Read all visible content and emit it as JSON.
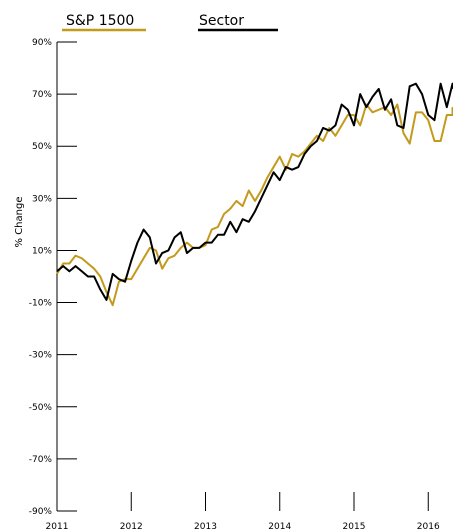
{
  "chart_data": {
    "type": "line",
    "title": "",
    "xlabel": "",
    "ylabel": "% Change",
    "ylim": [
      -90,
      90
    ],
    "yticks": [
      "90%",
      "70%",
      "50%",
      "30%",
      "10%",
      "-10%",
      "-30%",
      "-50%",
      "-70%",
      "-90%"
    ],
    "xtick_labels": [
      "2011",
      "2012",
      "2013",
      "2014",
      "2015",
      "2016"
    ],
    "x_start": "2011-01",
    "x_end": "2016-05",
    "grid": false,
    "legend_position": "top-left",
    "series": [
      {
        "name": "S&P 1500",
        "color": "#C49A1C",
        "values": [
          1,
          5,
          5,
          8,
          7,
          5,
          3,
          0,
          -6,
          -11,
          -2,
          -1,
          -1,
          3,
          7,
          11,
          10,
          3,
          7,
          8,
          11,
          13,
          11,
          11,
          12,
          18,
          19,
          24,
          26,
          29,
          27,
          33,
          29,
          33,
          38,
          42,
          46,
          41,
          47,
          46,
          48,
          51,
          54,
          52,
          57,
          54,
          58,
          62,
          62,
          58,
          66,
          63,
          64,
          65,
          62,
          66,
          55,
          51,
          63,
          63,
          60,
          52,
          52,
          62,
          62,
          65
        ]
      },
      {
        "name": "Sector",
        "color": "#000000",
        "values": [
          2,
          4,
          2,
          4,
          2,
          0,
          0,
          -5,
          -9,
          1,
          -1,
          -2,
          6,
          13,
          18,
          15,
          5,
          9,
          10,
          15,
          17,
          9,
          11,
          11,
          13,
          13,
          16,
          16,
          21,
          17,
          22,
          21,
          25,
          30,
          35,
          40,
          37,
          42,
          41,
          42,
          47,
          50,
          52,
          57,
          56,
          58,
          66,
          64,
          58,
          70,
          65,
          69,
          72,
          64,
          68,
          58,
          57,
          73,
          74,
          70,
          62,
          60,
          74,
          65,
          74,
          72
        ]
      }
    ]
  }
}
